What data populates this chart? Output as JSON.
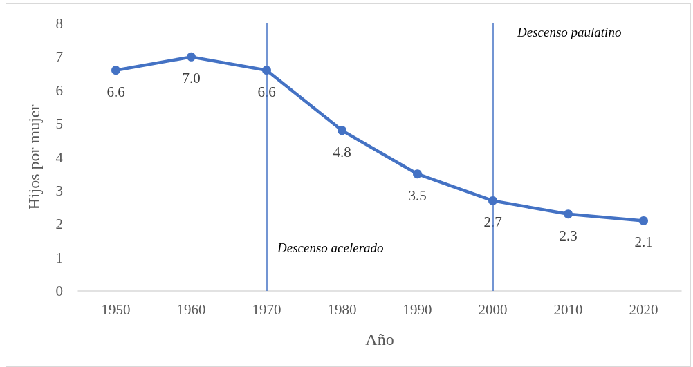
{
  "chart_data": {
    "type": "line",
    "xlabel": "Año",
    "ylabel": "Hijos por mujer",
    "categories": [
      "1950",
      "1960",
      "1970",
      "1980",
      "1990",
      "2000",
      "2010",
      "2020"
    ],
    "values": [
      6.6,
      7.0,
      6.6,
      4.8,
      3.5,
      2.7,
      2.3,
      2.1
    ],
    "value_labels": [
      "6.6",
      "7.0",
      "6.6",
      "4.8",
      "3.5",
      "2.7",
      "2.3",
      "2.1"
    ],
    "color": "#4472c4",
    "marker": "circle",
    "line_style": "solid",
    "ylim": [
      0,
      8
    ],
    "yticks": [
      0,
      1,
      2,
      3,
      4,
      5,
      6,
      7,
      8
    ],
    "grid": false,
    "ref_lines": [
      {
        "axis": "x",
        "value": "1970",
        "color": "#4472c4"
      },
      {
        "axis": "x",
        "value": "2000",
        "color": "#4472c4"
      }
    ],
    "annotations": [
      "Descenso acelerado",
      "Descenso paulatino"
    ]
  }
}
